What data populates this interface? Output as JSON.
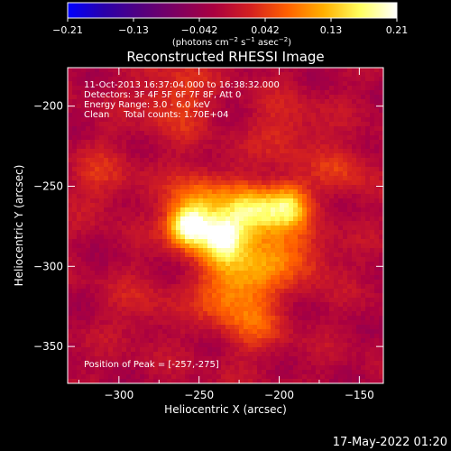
{
  "colors": {
    "background": "#000000",
    "foreground": "#ffffff",
    "colormap": [
      "#0000ff",
      "#2a00aa",
      "#54007f",
      "#7f0060",
      "#aa0040",
      "#d42020",
      "#ff6000",
      "#ffb000",
      "#ffff60",
      "#ffffff"
    ]
  },
  "colorbar": {
    "ticks": [
      "-0.21",
      "-0.13",
      "-0.042",
      "0.042",
      "0.13",
      "0.21"
    ],
    "unit_label": "(photons cm-2 s-1 asec-2)"
  },
  "info": {
    "line1": "11-Oct-2013 16:37:04.000 to 16:38:32.000",
    "line2": "Detectors: 3F 4F 5F 6F 7F 8F, Att 0",
    "line3": "Energy Range: 3.0 - 6.0 keV",
    "line4": "Clean     Total counts: 1.70E+04",
    "peak": "Position of Peak = [-257,-275]"
  },
  "timestamp": "17-May-2022 01:20",
  "chart_data": {
    "type": "heatmap",
    "title": "Reconstructed RHESSI Image",
    "xlabel": "Heliocentric X (arcsec)",
    "ylabel": "Heliocentric Y (arcsec)",
    "xlim": [
      -332,
      -135
    ],
    "ylim": [
      -373,
      -176
    ],
    "xticks": [
      -300,
      -250,
      -200,
      -150
    ],
    "yticks": [
      -200,
      -250,
      -300,
      -350
    ],
    "colorbar_range": [
      -0.21,
      0.21
    ],
    "peak_position": [
      -257,
      -275
    ],
    "sources": [
      {
        "x": -257,
        "y": -275,
        "intensity": 0.21
      },
      {
        "x": -235,
        "y": -282,
        "intensity": 0.18
      },
      {
        "x": -217,
        "y": -265,
        "intensity": 0.15
      },
      {
        "x": -195,
        "y": -262,
        "intensity": 0.16
      },
      {
        "x": -248,
        "y": -260,
        "intensity": 0.1
      },
      {
        "x": -225,
        "y": -305,
        "intensity": 0.09
      },
      {
        "x": -205,
        "y": -290,
        "intensity": 0.08
      },
      {
        "x": -215,
        "y": -335,
        "intensity": 0.06
      },
      {
        "x": -235,
        "y": -320,
        "intensity": 0.05
      },
      {
        "x": -180,
        "y": -295,
        "intensity": 0.05
      },
      {
        "x": -265,
        "y": -195,
        "intensity": 0.06
      },
      {
        "x": -195,
        "y": -215,
        "intensity": 0.05
      },
      {
        "x": -310,
        "y": -245,
        "intensity": 0.04
      },
      {
        "x": -160,
        "y": -240,
        "intensity": 0.05
      },
      {
        "x": -285,
        "y": -325,
        "intensity": 0.03
      }
    ]
  }
}
